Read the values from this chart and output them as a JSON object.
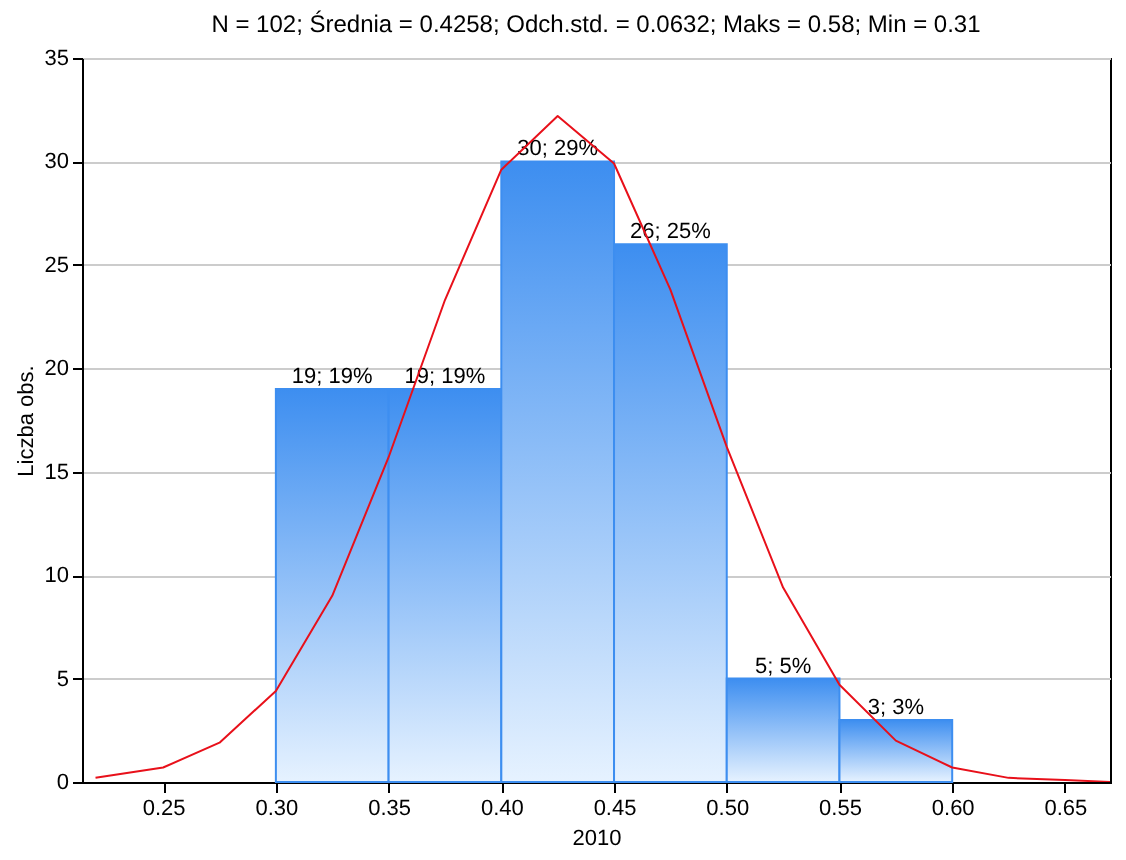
{
  "chart_data": {
    "type": "histogram",
    "title": "N = 102; Średnia = 0.4258; Odch.std. = 0.0632; Maks = 0.58; Min = 0.31",
    "xlabel": "2010",
    "ylabel": "Liczba obs.",
    "bins": [
      0.3,
      0.35,
      0.4,
      0.45,
      0.5,
      0.55,
      0.6
    ],
    "values": [
      19,
      19,
      30,
      26,
      5,
      3
    ],
    "value_labels": [
      "19; 19%",
      "19; 19%",
      "30; 29%",
      "26; 25%",
      "5; 5%",
      "3; 3%"
    ],
    "color": "#3d8ef0",
    "series": [
      {
        "type": "line",
        "color": "#e8101a",
        "x": [
          0.22,
          0.25,
          0.275,
          0.3,
          0.325,
          0.35,
          0.375,
          0.4,
          0.425,
          0.45,
          0.475,
          0.5,
          0.525,
          0.55,
          0.575,
          0.6,
          0.625,
          0.65,
          0.67
        ],
        "values": [
          0.2,
          0.7,
          1.9,
          4.4,
          9.0,
          15.7,
          23.3,
          29.6,
          32.2,
          29.9,
          23.8,
          16.2,
          9.4,
          4.7,
          2.0,
          0.7,
          0.2,
          0.1,
          0.0
        ]
      }
    ],
    "xlim": [
      0.214,
      0.67
    ],
    "xticks": [
      {
        "value": 0.25,
        "label": "0.25"
      },
      {
        "value": 0.3,
        "label": "0.30"
      },
      {
        "value": 0.35,
        "label": "0.35"
      },
      {
        "value": 0.4,
        "label": "0.40"
      },
      {
        "value": 0.45,
        "label": "0.45"
      },
      {
        "value": 0.5,
        "label": "0.50"
      },
      {
        "value": 0.55,
        "label": "0.55"
      },
      {
        "value": 0.6,
        "label": "0.60"
      },
      {
        "value": 0.65,
        "label": "0.65"
      }
    ],
    "ylim": [
      0,
      35
    ],
    "yticks": [
      0,
      5,
      10,
      15,
      20,
      25,
      30,
      35
    ],
    "grid": "y"
  }
}
